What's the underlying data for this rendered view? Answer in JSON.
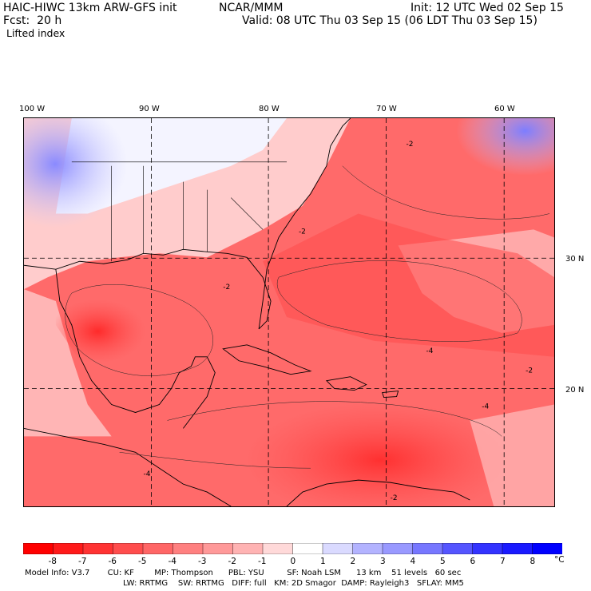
{
  "header": {
    "model": "HAIC-HIWC 13km ARW-GFS init",
    "org": "NCAR/MMM",
    "init": "Init: 12 UTC Wed 02 Sep 15",
    "fcst": "Fcst:  20 h",
    "valid": "Valid: 08 UTC Thu 03 Sep 15 (06 LDT Thu 03 Sep 15)",
    "field": "Lifted index"
  },
  "map": {
    "lon_labels": [
      "100 W",
      "90 W",
      "80 W",
      "70 W",
      "60 W"
    ],
    "lon_values": [
      -100,
      -90,
      -80,
      -70,
      -60
    ],
    "lat_labels": [
      "30 N",
      "20 N"
    ],
    "lat_values": [
      30,
      20
    ],
    "contour_labels": [
      "-2",
      "-2",
      "-2",
      "-2",
      "-4",
      "-4",
      "-2",
      "-4"
    ]
  },
  "colorbar": {
    "levels": [
      "-8",
      "-7",
      "-6",
      "-5",
      "-4",
      "-3",
      "-2",
      "-1",
      "0",
      "1",
      "2",
      "3",
      "4",
      "5",
      "6",
      "7",
      "8"
    ],
    "unit": "°C",
    "colors": [
      "#ff0000",
      "#ff1a1a",
      "#ff3333",
      "#ff4d4d",
      "#ff6666",
      "#ff8080",
      "#ff9999",
      "#ffb3b3",
      "#ffd9d9",
      "#ffffff",
      "#dadaff",
      "#b3b3ff",
      "#9999ff",
      "#7777ff",
      "#5555ff",
      "#3333ff",
      "#1a1aff",
      "#0000ff"
    ]
  },
  "footer": {
    "line1": "Model Info: V3.7       CU: KF        MP: Thompson      PBL: YSU         SF: Noah LSM      13 km    51 levels   60 sec",
    "line2": "LW: RRTMG    SW: RRTMG   DIFF: full   KM: 2D Smagor  DAMP: Rayleigh3   SFLAY: MM5"
  }
}
